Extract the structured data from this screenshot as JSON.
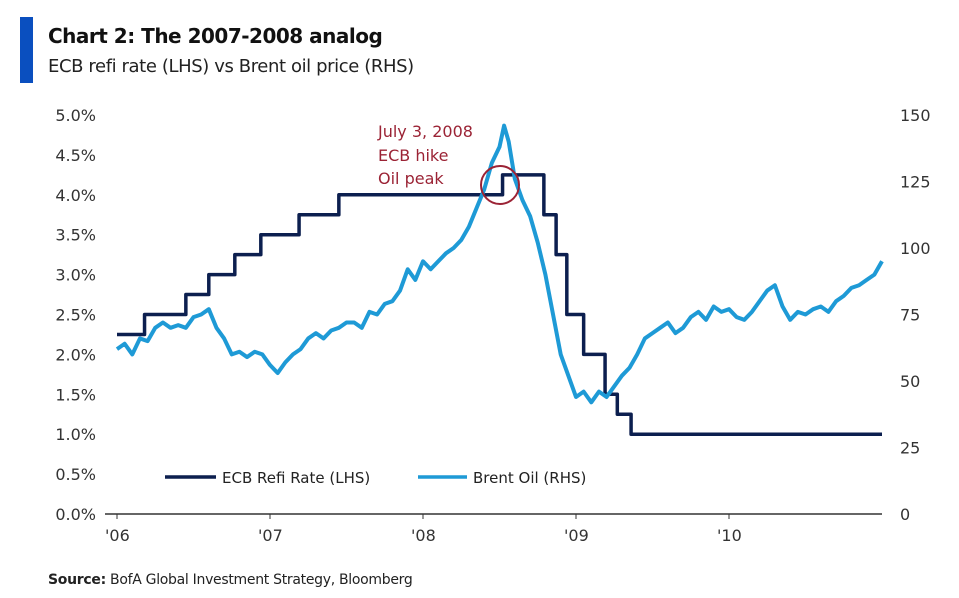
{
  "header": {
    "title": "Chart 2: The 2007-2008 analog",
    "subtitle": "ECB refi rate (LHS) vs Brent oil price (RHS)",
    "accent_color": "#0a4fbf"
  },
  "footer": {
    "source_label": "Source:",
    "source_text": "BofA Global Investment Strategy, Bloomberg"
  },
  "chart_data": {
    "type": "line",
    "title": "Chart 2: The 2007-2008 analog",
    "subtitle": "ECB refi rate (LHS) vs Brent oil price (RHS)",
    "x_ticks": [
      "'06",
      "'07",
      "'08",
      "'09",
      "'10"
    ],
    "x_range": [
      2006.0,
      2011.0
    ],
    "y_left": {
      "range": [
        0,
        5
      ],
      "ticks": [
        "0.0%",
        "0.5%",
        "1.0%",
        "1.5%",
        "2.0%",
        "2.5%",
        "3.0%",
        "3.5%",
        "4.0%",
        "4.5%",
        "5.0%"
      ]
    },
    "y_right": {
      "range": [
        0,
        150
      ],
      "ticks": [
        "0",
        "25",
        "50",
        "75",
        "100",
        "125",
        "150"
      ]
    },
    "grid": false,
    "legend": {
      "placement": "bottom-left",
      "entries": [
        "ECB Refi Rate (LHS)",
        "Brent Oil (RHS)"
      ]
    },
    "annotation": {
      "lines": [
        "July 3, 2008",
        "ECB hike",
        "Oil peak"
      ],
      "color": "#9b2335",
      "date": "2008-07-03"
    },
    "series": [
      {
        "name": "ECB Refi Rate (LHS)",
        "axis": "left",
        "color": "#0c1f4f",
        "step": true,
        "x": [
          2006.0,
          2006.18,
          2006.45,
          2006.6,
          2006.77,
          2006.94,
          2007.19,
          2007.45,
          2008.52,
          2008.79,
          2008.87,
          2008.94,
          2009.05,
          2009.19,
          2009.27,
          2009.36,
          2011.0
        ],
        "values": [
          2.25,
          2.5,
          2.75,
          3.0,
          3.25,
          3.5,
          3.75,
          4.0,
          4.25,
          3.75,
          3.25,
          2.5,
          2.0,
          1.5,
          1.25,
          1.0,
          1.0
        ]
      },
      {
        "name": "Brent Oil (RHS)",
        "axis": "right",
        "color": "#1e9ad6",
        "step": false,
        "x": [
          2006.0,
          2006.05,
          2006.1,
          2006.15,
          2006.2,
          2006.25,
          2006.3,
          2006.35,
          2006.4,
          2006.45,
          2006.5,
          2006.55,
          2006.6,
          2006.65,
          2006.7,
          2006.75,
          2006.8,
          2006.85,
          2006.9,
          2006.95,
          2007.0,
          2007.05,
          2007.1,
          2007.15,
          2007.2,
          2007.25,
          2007.3,
          2007.35,
          2007.4,
          2007.45,
          2007.5,
          2007.55,
          2007.6,
          2007.65,
          2007.7,
          2007.75,
          2007.8,
          2007.85,
          2007.9,
          2007.95,
          2008.0,
          2008.05,
          2008.1,
          2008.15,
          2008.2,
          2008.25,
          2008.3,
          2008.35,
          2008.4,
          2008.45,
          2008.5,
          2008.53,
          2008.56,
          2008.6,
          2008.65,
          2008.7,
          2008.75,
          2008.8,
          2008.85,
          2008.9,
          2008.95,
          2009.0,
          2009.05,
          2009.1,
          2009.15,
          2009.2,
          2009.25,
          2009.3,
          2009.35,
          2009.4,
          2009.45,
          2009.5,
          2009.55,
          2009.6,
          2009.65,
          2009.7,
          2009.75,
          2009.8,
          2009.85,
          2009.9,
          2009.95,
          2010.0,
          2010.05,
          2010.1,
          2010.15,
          2010.2,
          2010.25,
          2010.3,
          2010.35,
          2010.4,
          2010.45,
          2010.5,
          2010.55,
          2010.6,
          2010.65,
          2010.7,
          2010.75,
          2010.8,
          2010.85,
          2010.9,
          2010.95,
          2011.0
        ],
        "values": [
          62,
          64,
          60,
          66,
          65,
          70,
          72,
          70,
          71,
          70,
          74,
          75,
          77,
          70,
          66,
          60,
          61,
          59,
          61,
          60,
          56,
          53,
          57,
          60,
          62,
          66,
          68,
          66,
          69,
          70,
          72,
          72,
          70,
          76,
          75,
          79,
          80,
          84,
          92,
          88,
          95,
          92,
          95,
          98,
          100,
          103,
          108,
          115,
          122,
          132,
          138,
          146,
          140,
          126,
          118,
          112,
          102,
          90,
          75,
          60,
          52,
          44,
          46,
          42,
          46,
          44,
          48,
          52,
          55,
          60,
          66,
          68,
          70,
          72,
          68,
          70,
          74,
          76,
          73,
          78,
          76,
          77,
          74,
          73,
          76,
          80,
          84,
          86,
          78,
          73,
          76,
          75,
          77,
          78,
          76,
          80,
          82,
          85,
          86,
          88,
          90,
          95
        ]
      }
    ]
  }
}
